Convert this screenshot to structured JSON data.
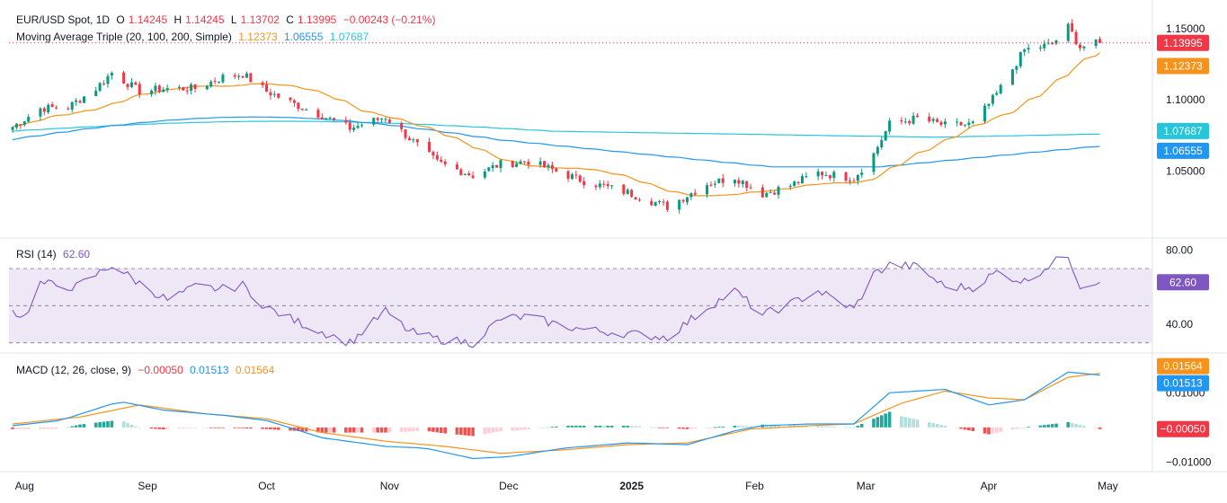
{
  "header": {
    "symbol": "EUR/USD Spot, 1D",
    "o_label": "O",
    "o_value": "1.14245",
    "h_label": "H",
    "h_value": "1.14245",
    "l_label": "L",
    "l_value": "1.13702",
    "c_label": "C",
    "c_value": "1.13995",
    "change": "−0.00243 (−0.21%)",
    "ma_label": "Moving Average Triple (20, 100, 200, Simple)",
    "ma20": "1.12373",
    "ma100": "1.06555",
    "ma200": "1.07687"
  },
  "rsi_header": {
    "label": "RSI (14)",
    "value": "62.60"
  },
  "macd_header": {
    "label": "MACD (12, 26, close, 9)",
    "hist": "−0.00050",
    "macd": "0.01513",
    "signal": "0.01564"
  },
  "colors": {
    "up": "#089981",
    "down": "#f23645",
    "ma20": "#f7931a",
    "ma100": "#2196f3",
    "ma200": "#26c6da",
    "rsi": "#7e57c2",
    "rsi_band": "#ede7f6",
    "hist_up_strong": "#26a69a",
    "hist_up_weak": "#b2dfdb",
    "hist_down_strong": "#ef5350",
    "hist_down_weak": "#ffcdd2",
    "price_tag": "#f23645"
  },
  "chart_data": [
    {
      "type": "candlestick",
      "title": "EUR/USD Spot, 1D",
      "ylim": [
        1.005,
        1.165
      ],
      "y_ticks": [
        "1.15000",
        "1.10000",
        "1.05000"
      ],
      "x_ticks": [
        "Aug",
        "Sep",
        "Oct",
        "Nov",
        "Dec",
        "2025",
        "Feb",
        "Mar",
        "Apr",
        "May"
      ],
      "close_anchors": [
        [
          "Jul 29",
          1.081
        ],
        [
          "Aug 5",
          1.094
        ],
        [
          "Aug 12",
          1.095
        ],
        [
          "Aug 19",
          1.108
        ],
        [
          "Aug 23",
          1.119
        ],
        [
          "Aug 30",
          1.106
        ],
        [
          "Sep 6",
          1.108
        ],
        [
          "Sep 13",
          1.108
        ],
        [
          "Sep 20",
          1.116
        ],
        [
          "Sep 25",
          1.118
        ],
        [
          "Oct 1",
          1.106
        ],
        [
          "Oct 8",
          1.097
        ],
        [
          "Oct 15",
          1.089
        ],
        [
          "Oct 22",
          1.08
        ],
        [
          "Oct 31",
          1.088
        ],
        [
          "Nov 6",
          1.073
        ],
        [
          "Nov 13",
          1.056
        ],
        [
          "Nov 22",
          1.047
        ],
        [
          "Nov 29",
          1.055
        ],
        [
          "Dec 6",
          1.057
        ],
        [
          "Dec 13",
          1.05
        ],
        [
          "Dec 20",
          1.043
        ],
        [
          "Dec 31",
          1.035
        ],
        [
          "Jan 10",
          1.025
        ],
        [
          "Jan 20",
          1.041
        ],
        [
          "Jan 27",
          1.046
        ],
        [
          "Feb 3",
          1.034
        ],
        [
          "Feb 10",
          1.04
        ],
        [
          "Feb 17",
          1.049
        ],
        [
          "Feb 26",
          1.045
        ],
        [
          "Mar 3",
          1.062
        ],
        [
          "Mar 7",
          1.083
        ],
        [
          "Mar 14",
          1.087
        ],
        [
          "Mar 21",
          1.082
        ],
        [
          "Mar 28",
          1.083
        ],
        [
          "Apr 3",
          1.104
        ],
        [
          "Apr 10",
          1.135
        ],
        [
          "Apr 17",
          1.139
        ],
        [
          "Apr 21",
          1.151
        ],
        [
          "Apr 24",
          1.137
        ],
        [
          "Apr 29",
          1.14
        ]
      ],
      "series": [
        {
          "name": "MA 20",
          "last": 1.12373
        },
        {
          "name": "MA 100",
          "last": 1.06555
        },
        {
          "name": "MA 200",
          "last": 1.07687
        }
      ],
      "last_price": "1.13995",
      "axis_tags": [
        {
          "text": "1.13995",
          "value": 1.13995,
          "color": "#f23645"
        },
        {
          "text": "1.12373",
          "value": 1.12373,
          "color": "#f7931a"
        },
        {
          "text": "1.07687",
          "value": 1.07687,
          "color": "#26c6da"
        },
        {
          "text": "1.06555",
          "value": 1.06555,
          "color": "#2196f3"
        }
      ]
    },
    {
      "type": "line",
      "title": "RSI (14)",
      "ylim": [
        25,
        85
      ],
      "y_ticks": [
        "80.00",
        "40.00"
      ],
      "bands": [
        30,
        50,
        70
      ],
      "anchors": [
        [
          "Jul 29",
          47
        ],
        [
          "Aug 1",
          44
        ],
        [
          "Aug 5",
          62
        ],
        [
          "Aug 14",
          60
        ],
        [
          "Aug 23",
          72
        ],
        [
          "Aug 30",
          62
        ],
        [
          "Sep 6",
          53
        ],
        [
          "Sep 13",
          60
        ],
        [
          "Sep 20",
          59
        ],
        [
          "Sep 25",
          61
        ],
        [
          "Oct 1",
          49
        ],
        [
          "Oct 8",
          42
        ],
        [
          "Oct 15",
          36
        ],
        [
          "Oct 22",
          30
        ],
        [
          "Oct 31",
          47
        ],
        [
          "Nov 6",
          36
        ],
        [
          "Nov 13",
          32
        ],
        [
          "Nov 22",
          30
        ],
        [
          "Nov 29",
          43
        ],
        [
          "Dec 6",
          44
        ],
        [
          "Dec 13",
          40
        ],
        [
          "Dec 20",
          37
        ],
        [
          "Dec 31",
          35
        ],
        [
          "Jan 10",
          33
        ],
        [
          "Jan 20",
          49
        ],
        [
          "Jan 27",
          58
        ],
        [
          "Feb 3",
          45
        ],
        [
          "Feb 10",
          51
        ],
        [
          "Feb 17",
          58
        ],
        [
          "Feb 26",
          48
        ],
        [
          "Mar 3",
          67
        ],
        [
          "Mar 7",
          72
        ],
        [
          "Mar 14",
          71
        ],
        [
          "Mar 21",
          60
        ],
        [
          "Mar 28",
          60
        ],
        [
          "Apr 3",
          68
        ],
        [
          "Apr 10",
          63
        ],
        [
          "Apr 17",
          73
        ],
        [
          "Apr 21",
          77
        ],
        [
          "Apr 24",
          61
        ],
        [
          "Apr 29",
          62.6
        ]
      ],
      "value": "62.60"
    },
    {
      "type": "macd",
      "title": "MACD (12, 26, close, 9)",
      "ylim": [
        -0.012,
        0.021
      ],
      "y_ticks": [
        "0.01000",
        "-0.01000"
      ],
      "macd_anchors": [
        [
          "Jul 29",
          0.0005
        ],
        [
          "Aug 10",
          0.002
        ],
        [
          "Aug 25",
          0.0075
        ],
        [
          "Sep 5",
          0.005
        ],
        [
          "Sep 20",
          0.0035
        ],
        [
          "Oct 1",
          0.002
        ],
        [
          "Oct 15",
          -0.003
        ],
        [
          "Oct 31",
          -0.0055
        ],
        [
          "Nov 10",
          -0.006
        ],
        [
          "Nov 22",
          -0.009
        ],
        [
          "Dec 1",
          -0.0085
        ],
        [
          "Dec 15",
          -0.006
        ],
        [
          "Dec 31",
          -0.0045
        ],
        [
          "Jan 15",
          -0.005
        ],
        [
          "Jan 27",
          -0.001
        ],
        [
          "Feb 3",
          0.0005
        ],
        [
          "Feb 15",
          0.001
        ],
        [
          "Feb 26",
          0.001
        ],
        [
          "Mar 7",
          0.01
        ],
        [
          "Mar 21",
          0.011
        ],
        [
          "Apr 1",
          0.0065
        ],
        [
          "Apr 10",
          0.008
        ],
        [
          "Apr 21",
          0.016
        ],
        [
          "Apr 29",
          0.01513
        ]
      ],
      "signal_anchors": [
        [
          "Jul 29",
          0.001
        ],
        [
          "Aug 15",
          0.003
        ],
        [
          "Aug 30",
          0.0065
        ],
        [
          "Sep 15",
          0.004
        ],
        [
          "Oct 1",
          0.0025
        ],
        [
          "Oct 15",
          -0.0015
        ],
        [
          "Oct 31",
          -0.004
        ],
        [
          "Nov 15",
          -0.0055
        ],
        [
          "Nov 29",
          -0.0075
        ],
        [
          "Dec 15",
          -0.0065
        ],
        [
          "Dec 31",
          -0.005
        ],
        [
          "Jan 15",
          -0.0045
        ],
        [
          "Jan 31",
          -0.0005
        ],
        [
          "Feb 15",
          0.0005
        ],
        [
          "Feb 26",
          0.001
        ],
        [
          "Mar 10",
          0.007
        ],
        [
          "Mar 21",
          0.0105
        ],
        [
          "Apr 1",
          0.0085
        ],
        [
          "Apr 10",
          0.008
        ],
        [
          "Apr 21",
          0.0145
        ],
        [
          "Apr 29",
          0.01564
        ]
      ],
      "hist_last": -0.0005,
      "axis_tags": [
        {
          "text": "0.01564",
          "value": 0.01564,
          "color": "#f7931a"
        },
        {
          "text": "0.01513",
          "value": 0.01513,
          "color": "#2196f3"
        },
        {
          "text": "−0.00050",
          "value": -0.0005,
          "color": "#f23645"
        }
      ]
    }
  ]
}
